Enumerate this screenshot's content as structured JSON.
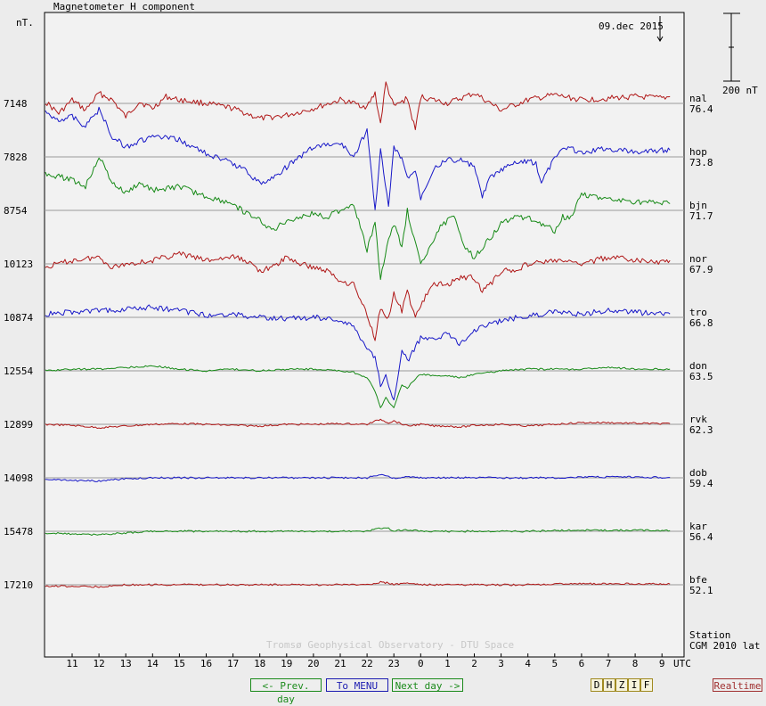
{
  "header": {
    "title": "Magnetometer H component",
    "unit_left": "nT.",
    "date": "09.dec 2015",
    "scale_label": "200 nT"
  },
  "footer": {
    "observatory": "Tromsø Geophysical Observatory - DTU Space",
    "station_label": "Station",
    "cgm_label": "CGM 2010 lat",
    "utc_label": "UTC"
  },
  "colors": {
    "red": "#b01818",
    "blue": "#1818c8",
    "green": "#178a17",
    "baseline": "#9a9a9a"
  },
  "chart_data": {
    "type": "line",
    "title": "Magnetometer H component",
    "ylabel": "nT.",
    "xlabel": "UTC",
    "x_ticks": [
      "11",
      "12",
      "13",
      "14",
      "15",
      "16",
      "17",
      "18",
      "19",
      "20",
      "21",
      "22",
      "23",
      "0",
      "1",
      "2",
      "3",
      "4",
      "5",
      "6",
      "7",
      "8",
      "9"
    ],
    "x_range_hours_utc": [
      10,
      9.35
    ],
    "series": [
      {
        "station": "nal",
        "baseline_nT": 7148,
        "cgm_lat": "76.4",
        "color": "red",
        "x_hours": [
          10.0,
          10.5,
          11.0,
          11.5,
          12.0,
          12.5,
          13.0,
          13.5,
          14.0,
          14.5,
          15.0,
          16.0,
          17.0,
          18.0,
          19.0,
          20.0,
          21.0,
          22.0,
          22.3,
          22.5,
          22.7,
          23.0,
          23.5,
          23.8,
          24.0,
          24.5,
          25.0,
          26.0,
          27.0,
          28.0,
          29.0,
          30.0,
          31.0,
          32.0,
          33.0,
          33.3
        ],
        "values_nT": [
          5,
          -30,
          10,
          -20,
          30,
          10,
          -40,
          5,
          -15,
          20,
          10,
          0,
          -15,
          -45,
          -35,
          -15,
          10,
          -10,
          30,
          -60,
          60,
          -10,
          15,
          -80,
          20,
          10,
          0,
          30,
          -20,
          10,
          25,
          10,
          15,
          20,
          15,
          20
        ]
      },
      {
        "station": "hop",
        "baseline_nT": 7828,
        "cgm_lat": "73.8",
        "color": "blue",
        "x_hours": [
          10.0,
          10.5,
          11.0,
          11.5,
          12.0,
          12.5,
          13.0,
          14.0,
          15.0,
          16.0,
          17.0,
          17.5,
          18.0,
          18.5,
          19.0,
          19.5,
          20.0,
          21.0,
          21.5,
          22.0,
          22.3,
          22.5,
          22.8,
          23.0,
          23.3,
          23.5,
          23.8,
          24.0,
          24.5,
          25.0,
          25.5,
          26.0,
          26.3,
          26.6,
          27.0,
          27.5,
          28.0,
          28.3,
          28.5,
          29.0,
          29.5,
          30.0,
          30.5,
          31.0,
          32.0,
          33.0,
          33.3
        ],
        "values_nT": [
          130,
          110,
          120,
          90,
          140,
          60,
          30,
          60,
          50,
          10,
          -20,
          -40,
          -80,
          -60,
          -30,
          0,
          30,
          40,
          0,
          80,
          -160,
          20,
          -150,
          30,
          -10,
          -60,
          -40,
          -120,
          -30,
          -10,
          -10,
          -30,
          -120,
          -60,
          -40,
          -20,
          -10,
          -20,
          -80,
          0,
          30,
          10,
          20,
          25,
          15,
          20,
          20
        ]
      },
      {
        "station": "bjn",
        "baseline_nT": 8754,
        "cgm_lat": "71.7",
        "color": "green",
        "x_hours": [
          10.0,
          10.5,
          11.0,
          11.5,
          12.0,
          12.5,
          13.0,
          13.5,
          14.0,
          15.0,
          16.0,
          17.0,
          17.5,
          18.0,
          18.5,
          19.0,
          19.5,
          20.0,
          20.5,
          21.0,
          21.5,
          22.0,
          22.3,
          22.5,
          22.8,
          23.0,
          23.3,
          23.5,
          24.0,
          24.3,
          24.6,
          25.0,
          25.3,
          25.6,
          26.0,
          26.5,
          27.0,
          27.5,
          28.0,
          28.5,
          29.0,
          29.3,
          29.6,
          30.0,
          30.5,
          31.0,
          32.0,
          33.0,
          33.3
        ],
        "values_nT": [
          110,
          100,
          90,
          70,
          160,
          80,
          50,
          80,
          60,
          70,
          40,
          20,
          -10,
          -30,
          -60,
          -30,
          -20,
          -10,
          -20,
          0,
          20,
          -120,
          -30,
          -200,
          -90,
          -40,
          -110,
          0,
          -160,
          -120,
          -60,
          -30,
          -20,
          -100,
          -140,
          -90,
          -40,
          -20,
          -20,
          -40,
          -60,
          -20,
          -20,
          50,
          40,
          30,
          25,
          20,
          20
        ]
      },
      {
        "station": "nor",
        "baseline_nT": 10123,
        "cgm_lat": "67.9",
        "color": "red",
        "x_hours": [
          10.0,
          11.0,
          12.0,
          12.5,
          13.0,
          14.0,
          15.0,
          16.0,
          17.0,
          17.5,
          18.0,
          18.5,
          19.0,
          19.5,
          20.0,
          20.5,
          21.0,
          21.5,
          22.0,
          22.3,
          22.5,
          22.8,
          23.0,
          23.3,
          23.5,
          23.8,
          24.0,
          24.5,
          25.0,
          25.5,
          26.0,
          26.3,
          26.6,
          27.0,
          27.5,
          28.0,
          29.0,
          30.0,
          31.0,
          32.0,
          33.0,
          33.3
        ],
        "values_nT": [
          -10,
          10,
          20,
          -10,
          0,
          10,
          30,
          10,
          20,
          10,
          -20,
          -10,
          20,
          0,
          -10,
          -20,
          -50,
          -60,
          -150,
          -220,
          -130,
          -160,
          -90,
          -140,
          -80,
          -160,
          -120,
          -60,
          -60,
          -40,
          -40,
          -80,
          -60,
          -20,
          -20,
          0,
          10,
          0,
          20,
          10,
          5,
          10
        ]
      },
      {
        "station": "tro",
        "baseline_nT": 10874,
        "cgm_lat": "66.8",
        "color": "blue",
        "x_hours": [
          10.0,
          11.0,
          12.0,
          13.0,
          14.0,
          15.0,
          16.0,
          17.0,
          18.0,
          19.0,
          20.0,
          21.0,
          21.5,
          22.0,
          22.3,
          22.5,
          22.7,
          23.0,
          23.3,
          23.5,
          24.0,
          24.5,
          25.0,
          25.5,
          26.0,
          26.5,
          27.0,
          28.0,
          29.0,
          30.0,
          31.0,
          32.0,
          33.0,
          33.3
        ],
        "values_nT": [
          10,
          15,
          20,
          25,
          30,
          20,
          5,
          10,
          0,
          -5,
          0,
          -10,
          -30,
          -90,
          -120,
          -200,
          -170,
          -250,
          -90,
          -130,
          -60,
          -60,
          -50,
          -80,
          -40,
          -20,
          -10,
          5,
          15,
          10,
          20,
          15,
          10,
          10
        ]
      },
      {
        "station": "don",
        "baseline_nT": 12554,
        "cgm_lat": "63.5",
        "color": "green",
        "x_hours": [
          10.0,
          11.0,
          12.0,
          13.0,
          14.0,
          15.0,
          16.0,
          17.0,
          18.0,
          19.0,
          20.0,
          21.0,
          21.5,
          22.0,
          22.3,
          22.5,
          22.7,
          23.0,
          23.3,
          23.5,
          24.0,
          24.5,
          25.0,
          25.5,
          26.0,
          26.5,
          27.0,
          28.0,
          29.0,
          30.0,
          31.0,
          32.0,
          33.0,
          33.3
        ],
        "values_nT": [
          0,
          5,
          5,
          10,
          15,
          5,
          0,
          5,
          0,
          5,
          5,
          0,
          -5,
          -20,
          -60,
          -110,
          -80,
          -110,
          -40,
          -50,
          -10,
          -15,
          -15,
          -20,
          -10,
          -5,
          0,
          5,
          5,
          5,
          10,
          5,
          5,
          5
        ]
      },
      {
        "station": "rvk",
        "baseline_nT": 12899,
        "cgm_lat": "62.3",
        "color": "red",
        "x_hours": [
          10.0,
          11.0,
          12.0,
          13.0,
          14.0,
          15.0,
          16.0,
          17.0,
          18.0,
          19.0,
          20.0,
          21.0,
          22.0,
          22.5,
          22.8,
          23.0,
          23.5,
          24.0,
          24.5,
          25.0,
          25.5,
          26.0,
          27.0,
          28.0,
          29.0,
          30.0,
          31.0,
          32.0,
          33.0,
          33.3
        ],
        "values_nT": [
          0,
          -3,
          -10,
          -5,
          0,
          2,
          0,
          -3,
          -5,
          0,
          0,
          2,
          0,
          15,
          5,
          10,
          -5,
          0,
          -5,
          -5,
          -8,
          -3,
          0,
          -5,
          0,
          5,
          5,
          3,
          2,
          2
        ]
      },
      {
        "station": "dob",
        "baseline_nT": 14098,
        "cgm_lat": "59.4",
        "color": "blue",
        "x_hours": [
          10.0,
          11.0,
          12.0,
          13.0,
          14.0,
          15.0,
          16.0,
          17.0,
          18.0,
          19.0,
          20.0,
          21.0,
          22.0,
          22.5,
          22.8,
          23.0,
          23.5,
          24.0,
          25.0,
          26.0,
          27.0,
          28.0,
          29.0,
          30.0,
          31.0,
          32.0,
          33.0,
          33.3
        ],
        "values_nT": [
          -5,
          -8,
          -10,
          -3,
          0,
          0,
          0,
          0,
          0,
          0,
          0,
          0,
          0,
          10,
          5,
          -2,
          3,
          0,
          0,
          0,
          0,
          0,
          0,
          2,
          2,
          2,
          1,
          1
        ]
      },
      {
        "station": "kar",
        "baseline_nT": 15478,
        "cgm_lat": "56.4",
        "color": "green",
        "x_hours": [
          10.0,
          11.0,
          12.0,
          13.0,
          14.0,
          15.0,
          16.0,
          17.0,
          18.0,
          19.0,
          20.0,
          21.0,
          22.0,
          22.5,
          22.8,
          23.0,
          23.5,
          24.0,
          25.0,
          26.0,
          27.0,
          28.0,
          29.0,
          30.0,
          31.0,
          32.0,
          33.0,
          33.3
        ],
        "values_nT": [
          -5,
          -8,
          -10,
          -5,
          0,
          0,
          0,
          0,
          0,
          0,
          0,
          0,
          0,
          10,
          8,
          2,
          5,
          0,
          0,
          0,
          0,
          0,
          2,
          3,
          3,
          3,
          2,
          2
        ]
      },
      {
        "station": "bfe",
        "baseline_nT": 17210,
        "cgm_lat": "52.1",
        "color": "red",
        "x_hours": [
          10.0,
          11.0,
          12.0,
          13.0,
          14.0,
          15.0,
          16.0,
          17.0,
          18.0,
          19.0,
          20.0,
          21.0,
          22.0,
          22.5,
          22.8,
          23.0,
          23.5,
          24.0,
          25.0,
          26.0,
          27.0,
          28.0,
          29.0,
          30.0,
          31.0,
          32.0,
          33.0,
          33.3
        ],
        "values_nT": [
          -3,
          -5,
          -6,
          0,
          0,
          0,
          0,
          0,
          0,
          0,
          0,
          0,
          0,
          8,
          5,
          0,
          5,
          0,
          0,
          0,
          0,
          0,
          2,
          3,
          3,
          3,
          2,
          2
        ]
      }
    ]
  },
  "nav": {
    "prev": "<- Prev. day",
    "menu": "To MENU",
    "next": "Next day ->",
    "components": [
      "D",
      "H",
      "Z",
      "I",
      "F"
    ],
    "realtime": "Realtime"
  }
}
